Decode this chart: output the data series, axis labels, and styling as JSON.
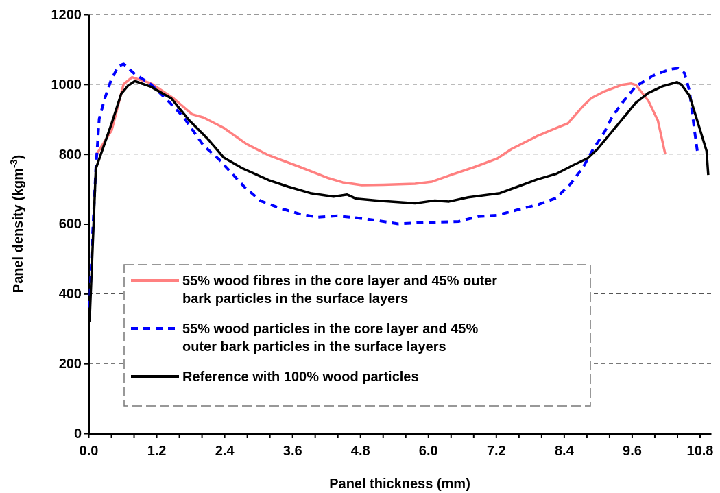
{
  "chart_data": {
    "type": "line",
    "xlabel": "Panel thickness (mm)",
    "ylabel": "Panel density (kgm$^{-3}$)",
    "xlim": [
      0,
      11
    ],
    "ylim": [
      0,
      1200
    ],
    "xticks": [
      {
        "value": 0,
        "label": "0.0"
      },
      {
        "value": 0.4,
        "label": null
      },
      {
        "value": 0.8,
        "label": null
      },
      1.2,
      {
        "value": 1.6,
        "label": null
      },
      {
        "value": 2.0,
        "label": null
      },
      2.4,
      {
        "value": 2.8,
        "label": null
      },
      {
        "value": 3.2,
        "label": null
      },
      3.6,
      {
        "value": 4.0,
        "label": null
      },
      {
        "value": 4.4,
        "label": null
      },
      4.8,
      {
        "value": 5.2,
        "label": null
      },
      {
        "value": 5.6,
        "label": null
      },
      {
        "value": 6.0,
        "label": "6.0"
      },
      {
        "value": 6.4,
        "label": null
      },
      {
        "value": 6.8,
        "label": null
      },
      7.2,
      {
        "value": 7.6,
        "label": null
      },
      {
        "value": 8.0,
        "label": null
      },
      8.4,
      {
        "value": 8.8,
        "label": null
      },
      {
        "value": 9.2,
        "label": null
      },
      9.6,
      {
        "value": 10.0,
        "label": null
      },
      {
        "value": 10.4,
        "label": null
      },
      {
        "value": 10.8,
        "label": "10.8"
      }
    ],
    "yticks": [
      0,
      200,
      400,
      600,
      800,
      1000,
      1200
    ],
    "grid": "y",
    "legend": "bottom left",
    "series": [
      {
        "name": "55% wood fibres in the core layer and 45% outer bark particles in the surface layers",
        "color": "#ff8080",
        "line_style": "solid",
        "x": [
          0.13,
          0.41,
          0.62,
          0.77,
          1.1,
          1.5,
          1.83,
          2.03,
          2.39,
          2.79,
          3.19,
          3.72,
          4.24,
          4.49,
          4.83,
          5.21,
          5.77,
          6.07,
          6.42,
          6.84,
          7.23,
          7.48,
          7.92,
          8.26,
          8.47,
          8.6,
          8.73,
          8.88,
          9.12,
          9.42,
          9.59,
          9.67,
          9.89,
          10.06,
          10.19
        ],
        "values": [
          796,
          868,
          1000,
          1020,
          1003,
          960,
          914,
          905,
          875,
          829,
          796,
          764,
          731,
          719,
          711,
          712,
          715,
          721,
          741,
          764,
          788,
          815,
          851,
          874,
          888,
          912,
          936,
          960,
          980,
          998,
          1002,
          998,
          953,
          896,
          800
        ]
      },
      {
        "name": "55% wood particles in the core layer and 45% outer bark particles in the surface layers",
        "color": "#0000ff",
        "line_style": "dashed",
        "x": [
          0.02,
          0.07,
          0.13,
          0.19,
          0.29,
          0.4,
          0.53,
          0.62,
          0.82,
          1.1,
          1.38,
          1.67,
          2.03,
          2.31,
          2.76,
          3.04,
          3.36,
          3.72,
          4.04,
          4.4,
          4.74,
          5.13,
          5.47,
          5.82,
          6.15,
          6.54,
          6.89,
          7.23,
          7.57,
          7.96,
          8.26,
          8.52,
          8.73,
          8.91,
          9.12,
          9.25,
          9.46,
          9.67,
          9.98,
          10.28,
          10.41,
          10.53,
          10.62,
          10.7,
          10.76
        ],
        "values": [
          360,
          560,
          757,
          901,
          960,
          1012,
          1052,
          1058,
          1029,
          1000,
          957,
          908,
          825,
          784,
          705,
          666,
          646,
          629,
          619,
          623,
          617,
          609,
          600,
          603,
          605,
          607,
          621,
          625,
          640,
          656,
          674,
          715,
          760,
          812,
          864,
          906,
          953,
          994,
          1025,
          1043,
          1046,
          1032,
          980,
          876,
          805
        ]
      },
      {
        "name": "Reference with 100% wood particles",
        "color": "#000000",
        "line_style": "solid",
        "x": [
          0.02,
          0.13,
          0.41,
          0.58,
          0.7,
          0.82,
          1.1,
          1.46,
          1.79,
          2.11,
          2.39,
          2.71,
          3.19,
          3.52,
          3.92,
          4.33,
          4.57,
          4.73,
          5.09,
          5.77,
          6.12,
          6.37,
          6.71,
          7.27,
          7.62,
          7.92,
          8.26,
          8.56,
          8.82,
          8.98,
          9.37,
          9.67,
          9.89,
          10.14,
          10.4,
          10.48,
          10.62,
          10.92,
          10.95
        ],
        "values": [
          320,
          758,
          888,
          973,
          996,
          1009,
          993,
          960,
          895,
          843,
          790,
          760,
          725,
          707,
          688,
          678,
          684,
          672,
          667,
          659,
          667,
          664,
          676,
          688,
          709,
          727,
          743,
          768,
          788,
          812,
          888,
          947,
          975,
          994,
          1006,
          998,
          967,
          809,
          740
        ]
      }
    ]
  }
}
